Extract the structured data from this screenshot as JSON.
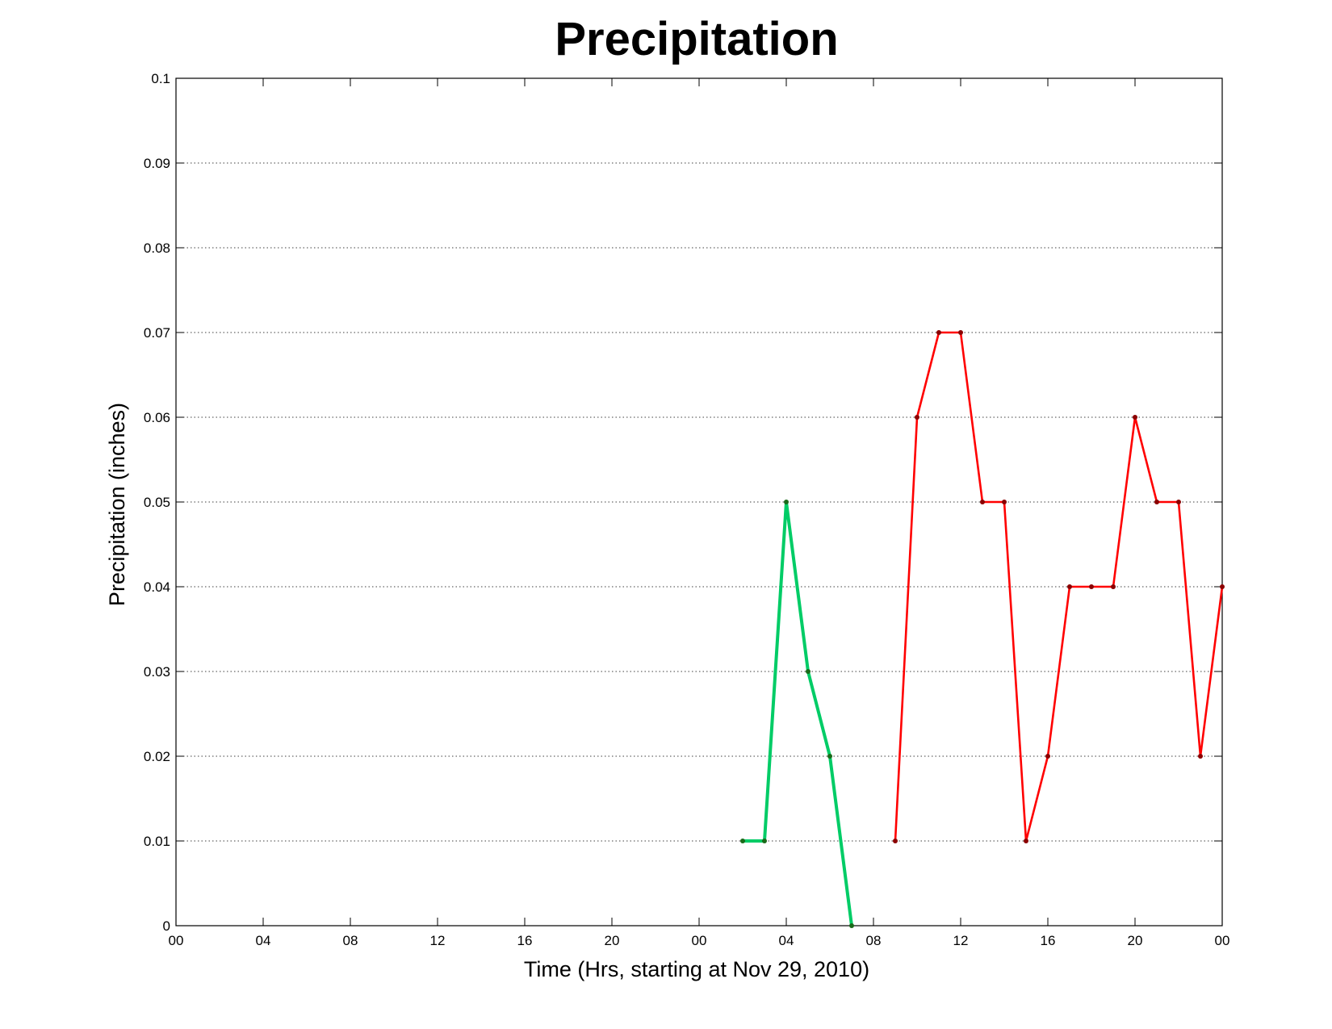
{
  "chart_data": {
    "type": "line",
    "title": "Precipitation",
    "xlabel": "Time (Hrs, starting at Nov 29, 2010)",
    "ylabel": "Precipitation (inches)",
    "xlim": [
      0,
      48
    ],
    "ylim": [
      0,
      0.1
    ],
    "grid": true,
    "legend": "none",
    "x_ticks": [
      {
        "value": 0,
        "label": "00"
      },
      {
        "value": 4,
        "label": "04"
      },
      {
        "value": 8,
        "label": "08"
      },
      {
        "value": 12,
        "label": "12"
      },
      {
        "value": 16,
        "label": "16"
      },
      {
        "value": 20,
        "label": "20"
      },
      {
        "value": 24,
        "label": "00"
      },
      {
        "value": 28,
        "label": "04"
      },
      {
        "value": 32,
        "label": "08"
      },
      {
        "value": 36,
        "label": "12"
      },
      {
        "value": 40,
        "label": "16"
      },
      {
        "value": 44,
        "label": "20"
      },
      {
        "value": 48,
        "label": "00"
      }
    ],
    "y_ticks": [
      {
        "value": 0,
        "label": "0"
      },
      {
        "value": 0.01,
        "label": "0.01"
      },
      {
        "value": 0.02,
        "label": "0.02"
      },
      {
        "value": 0.03,
        "label": "0.03"
      },
      {
        "value": 0.04,
        "label": "0.04"
      },
      {
        "value": 0.05,
        "label": "0.05"
      },
      {
        "value": 0.06,
        "label": "0.06"
      },
      {
        "value": 0.07,
        "label": "0.07"
      },
      {
        "value": 0.08,
        "label": "0.08"
      },
      {
        "value": 0.09,
        "label": "0.09"
      },
      {
        "value": 0.1,
        "label": "0.1"
      }
    ],
    "series": [
      {
        "color": "#00cc66",
        "marker_color": "#1a6b1a",
        "x": [
          26,
          27,
          28,
          29,
          30,
          31
        ],
        "y": [
          0.01,
          0.01,
          0.05,
          0.03,
          0.02,
          0
        ]
      },
      {
        "color": "#ff0000",
        "marker_color": "#8b0000",
        "x": [
          33,
          34,
          35,
          36,
          37,
          38,
          39,
          40,
          41,
          42,
          43,
          44,
          45,
          46,
          47,
          48
        ],
        "y": [
          0.01,
          0.06,
          0.07,
          0.07,
          0.05,
          0.05,
          0.01,
          0.02,
          0.04,
          0.04,
          0.04,
          0.06,
          0.05,
          0.05,
          0.02,
          0.04
        ]
      }
    ]
  }
}
